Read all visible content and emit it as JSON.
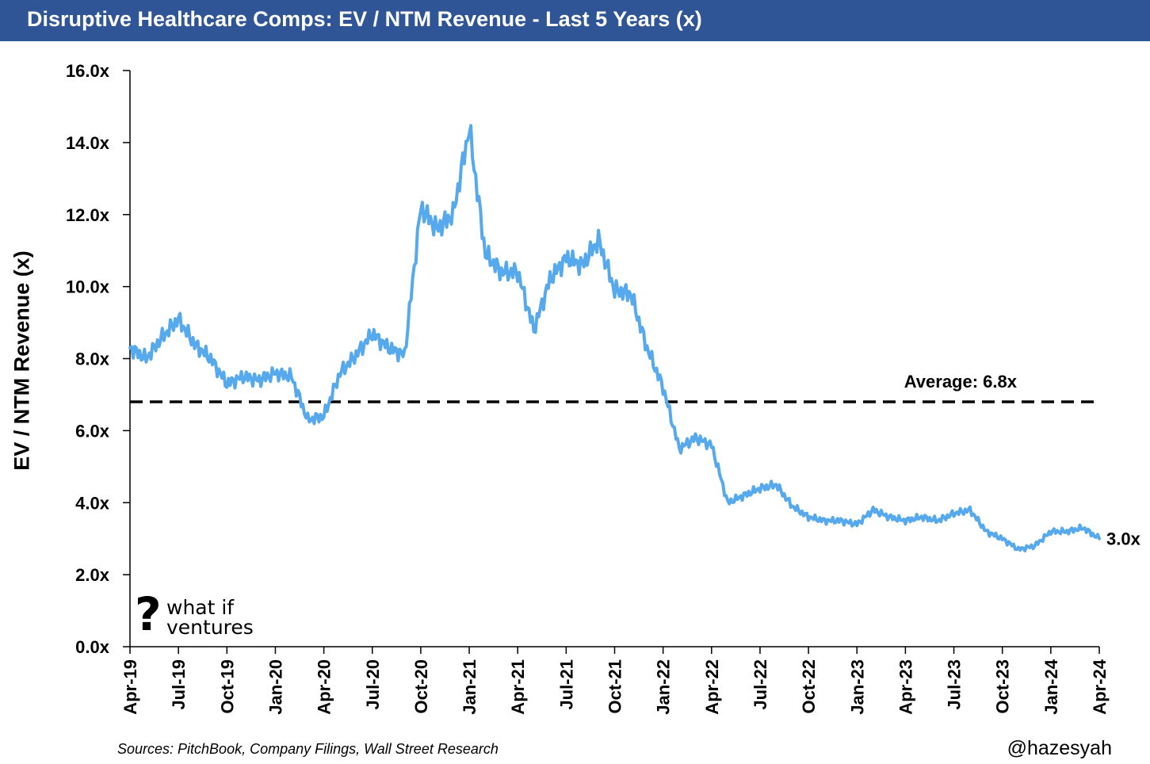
{
  "header": {
    "title": "Disruptive Healthcare Comps: EV / NTM Revenue - Last 5 Years (x)"
  },
  "footer": {
    "sources": "Sources: PitchBook, Company Filings, Wall Street Research",
    "handle": "@hazesyah"
  },
  "logo": {
    "mark": "?",
    "line1": "what if",
    "line2": "ventures"
  },
  "colors": {
    "line": "#55a9ec",
    "title_bar": "#2f5597",
    "average_line": "#000000"
  },
  "chart_data": {
    "type": "line",
    "title": "Disruptive Healthcare Comps: EV / NTM Revenue - Last 5 Years (x)",
    "ylabel": "EV / NTM Revenue (x)",
    "xlabel": "",
    "ylim": [
      0,
      16
    ],
    "yticks": [
      "0.0x",
      "2.0x",
      "4.0x",
      "6.0x",
      "8.0x",
      "10.0x",
      "12.0x",
      "14.0x",
      "16.0x"
    ],
    "xticks": [
      "Apr-19",
      "Jul-19",
      "Oct-19",
      "Jan-20",
      "Apr-20",
      "Jul-20",
      "Oct-20",
      "Jan-21",
      "Apr-21",
      "Jul-21",
      "Oct-21",
      "Jan-22",
      "Apr-22",
      "Jul-22",
      "Oct-22",
      "Jan-23",
      "Apr-23",
      "Jul-23",
      "Oct-23",
      "Jan-24",
      "Apr-24"
    ],
    "grid": false,
    "legend": "none",
    "average": {
      "value": 6.8,
      "label": "Average: 6.8x"
    },
    "end_label": "3.0x",
    "series": [
      {
        "x": [
          "Apr-19",
          "May-19",
          "Jun-19",
          "Jul-19",
          "Aug-19",
          "Sep-19",
          "Oct-19",
          "Nov-19",
          "Dec-19",
          "Jan-20",
          "Feb-20",
          "Mar-20",
          "Apr-20",
          "May-20",
          "Jun-20",
          "Jul-20",
          "Aug-20",
          "Sep-20",
          "Oct-20",
          "Nov-20",
          "Dec-20",
          "Jan-21",
          "Feb-21",
          "Mar-21",
          "Apr-21",
          "May-21",
          "Jun-21",
          "Jul-21",
          "Aug-21",
          "Sep-21",
          "Oct-21",
          "Nov-21",
          "Dec-21",
          "Jan-22",
          "Feb-22",
          "Mar-22",
          "Apr-22",
          "May-22",
          "Jun-22",
          "Jul-22",
          "Aug-22",
          "Sep-22",
          "Oct-22",
          "Nov-22",
          "Dec-22",
          "Jan-23",
          "Feb-23",
          "Mar-23",
          "Apr-23",
          "May-23",
          "Jun-23",
          "Jul-23",
          "Aug-23",
          "Sep-23",
          "Oct-23",
          "Nov-23",
          "Dec-23",
          "Jan-24",
          "Feb-24",
          "Mar-24",
          "Apr-24"
        ],
        "values": [
          8.3,
          8.0,
          8.6,
          9.1,
          8.4,
          8.0,
          7.3,
          7.5,
          7.4,
          7.6,
          7.5,
          6.3,
          6.4,
          7.6,
          8.1,
          8.7,
          8.3,
          8.1,
          12.2,
          11.6,
          12.0,
          14.4,
          10.9,
          10.4,
          10.4,
          8.8,
          10.2,
          10.8,
          10.6,
          11.3,
          9.9,
          9.8,
          8.3,
          7.2,
          5.5,
          5.8,
          5.6,
          4.0,
          4.2,
          4.4,
          4.5,
          3.9,
          3.6,
          3.5,
          3.5,
          3.4,
          3.8,
          3.6,
          3.5,
          3.6,
          3.5,
          3.7,
          3.8,
          3.2,
          3.0,
          2.7,
          2.8,
          3.2,
          3.2,
          3.3,
          3.0
        ]
      }
    ]
  }
}
